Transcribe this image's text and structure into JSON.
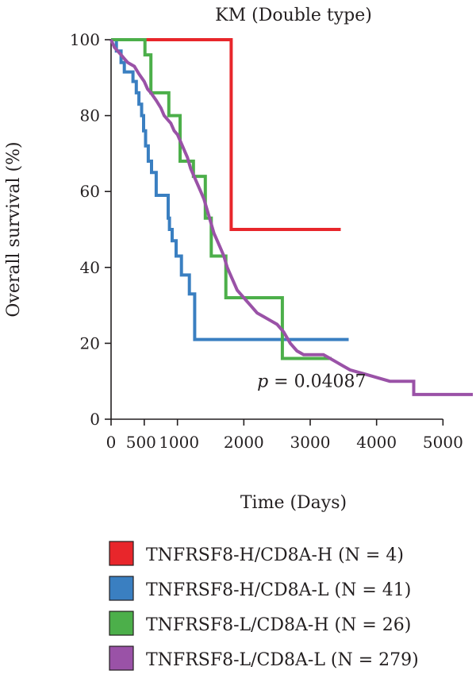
{
  "chart_data": {
    "type": "line",
    "step": true,
    "title": "KM (Double type)",
    "xlabel": "Time (Days)",
    "ylabel": "Overall survival (%)",
    "xlim": [
      0,
      5450
    ],
    "ylim": [
      0,
      100
    ],
    "xticks": [
      0,
      500,
      1000,
      2000,
      3000,
      4000,
      5000
    ],
    "yticks": [
      0,
      20,
      40,
      60,
      80,
      100
    ],
    "annotation": {
      "p_symbol": "p",
      "p_text": " = 0.04087",
      "x": 2200,
      "y": 8.5
    },
    "grid": false,
    "legend_position": "bottom",
    "series": [
      {
        "name": "TNFRSF8-H/CD8A-H (N = 4)",
        "color": "#e8262b",
        "points": [
          [
            0,
            100
          ],
          [
            1810,
            100
          ],
          [
            1810,
            50
          ],
          [
            3460,
            50
          ]
        ]
      },
      {
        "name": "TNFRSF8-H/CD8A-L (N = 41)",
        "color": "#3a7fc1",
        "points": [
          [
            0,
            100
          ],
          [
            80,
            100
          ],
          [
            80,
            97
          ],
          [
            150,
            97
          ],
          [
            150,
            94
          ],
          [
            200,
            94
          ],
          [
            200,
            91.5
          ],
          [
            330,
            91.5
          ],
          [
            330,
            89
          ],
          [
            380,
            89
          ],
          [
            380,
            86
          ],
          [
            420,
            86
          ],
          [
            420,
            83
          ],
          [
            460,
            83
          ],
          [
            460,
            80
          ],
          [
            490,
            80
          ],
          [
            490,
            76
          ],
          [
            520,
            76
          ],
          [
            520,
            72
          ],
          [
            560,
            72
          ],
          [
            560,
            68
          ],
          [
            610,
            68
          ],
          [
            610,
            65
          ],
          [
            680,
            65
          ],
          [
            680,
            59
          ],
          [
            860,
            59
          ],
          [
            860,
            53
          ],
          [
            880,
            53
          ],
          [
            880,
            50
          ],
          [
            920,
            50
          ],
          [
            920,
            47
          ],
          [
            980,
            47
          ],
          [
            980,
            43
          ],
          [
            1060,
            43
          ],
          [
            1060,
            38
          ],
          [
            1180,
            38
          ],
          [
            1180,
            33
          ],
          [
            1260,
            33
          ],
          [
            1260,
            21
          ],
          [
            3580,
            21
          ]
        ]
      },
      {
        "name": "TNFRSF8-L/CD8A-H (N = 26)",
        "color": "#4caf4a",
        "points": [
          [
            0,
            100
          ],
          [
            510,
            100
          ],
          [
            510,
            96
          ],
          [
            600,
            96
          ],
          [
            600,
            86
          ],
          [
            870,
            86
          ],
          [
            870,
            80
          ],
          [
            1040,
            80
          ],
          [
            1040,
            68
          ],
          [
            1240,
            68
          ],
          [
            1240,
            64
          ],
          [
            1420,
            64
          ],
          [
            1420,
            53
          ],
          [
            1510,
            53
          ],
          [
            1510,
            43
          ],
          [
            1730,
            43
          ],
          [
            1730,
            32
          ],
          [
            2580,
            32
          ],
          [
            2580,
            16
          ],
          [
            3320,
            16
          ]
        ]
      },
      {
        "name": "TNFRSF8-L/CD8A-L (N = 279)",
        "color": "#9a52a7",
        "points": [
          [
            0,
            100
          ],
          [
            50,
            98
          ],
          [
            100,
            97
          ],
          [
            150,
            96
          ],
          [
            200,
            95
          ],
          [
            250,
            94
          ],
          [
            300,
            93.5
          ],
          [
            350,
            93
          ],
          [
            420,
            91
          ],
          [
            500,
            89
          ],
          [
            550,
            87
          ],
          [
            600,
            86
          ],
          [
            680,
            84
          ],
          [
            750,
            82
          ],
          [
            800,
            80
          ],
          [
            850,
            79
          ],
          [
            900,
            78
          ],
          [
            950,
            76
          ],
          [
            1000,
            75
          ],
          [
            1050,
            73
          ],
          [
            1100,
            71
          ],
          [
            1150,
            69
          ],
          [
            1200,
            66
          ],
          [
            1250,
            64
          ],
          [
            1300,
            62
          ],
          [
            1350,
            60
          ],
          [
            1400,
            58
          ],
          [
            1450,
            55
          ],
          [
            1500,
            52
          ],
          [
            1550,
            49
          ],
          [
            1600,
            47
          ],
          [
            1650,
            45
          ],
          [
            1700,
            43
          ],
          [
            1750,
            40
          ],
          [
            1800,
            38
          ],
          [
            1850,
            36
          ],
          [
            1900,
            34
          ],
          [
            1950,
            33
          ],
          [
            2000,
            32
          ],
          [
            2100,
            30
          ],
          [
            2200,
            28
          ],
          [
            2300,
            27
          ],
          [
            2400,
            26
          ],
          [
            2500,
            25
          ],
          [
            2600,
            23
          ],
          [
            2700,
            20
          ],
          [
            2800,
            18
          ],
          [
            2900,
            17
          ],
          [
            3000,
            17
          ],
          [
            3200,
            17
          ],
          [
            3300,
            16
          ],
          [
            3400,
            15
          ],
          [
            3500,
            14
          ],
          [
            3600,
            13
          ],
          [
            3700,
            12.5
          ],
          [
            3800,
            12
          ],
          [
            4000,
            11
          ],
          [
            4200,
            10
          ],
          [
            4560,
            10
          ],
          [
            4560,
            6.5
          ],
          [
            5450,
            6.5
          ]
        ]
      }
    ]
  }
}
